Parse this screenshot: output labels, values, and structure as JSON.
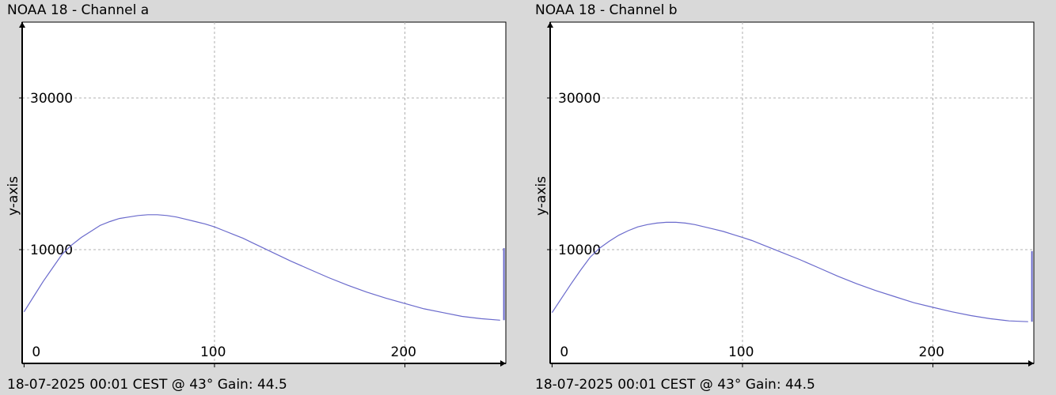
{
  "chart_data": [
    {
      "type": "line",
      "title": "NOAA 18 - Channel a",
      "footer": "18-07-2025 00:01 CEST @ 43° Gain: 44.5",
      "xlabel": "",
      "ylabel": "y-axis",
      "xlim": [
        -1,
        253
      ],
      "ylim": [
        -5000,
        40000
      ],
      "x_ticks": [
        0,
        100,
        200
      ],
      "y_ticks": [
        10000,
        30000
      ],
      "grid": true,
      "line_color": "#6a6acc",
      "series": [
        {
          "x": [
            0,
            5,
            10,
            15,
            20,
            25,
            30,
            35,
            40,
            45,
            50,
            55,
            60,
            65,
            70,
            75,
            80,
            85,
            90,
            95,
            100,
            105,
            110,
            115,
            120,
            130,
            140,
            150,
            160,
            170,
            180,
            190,
            200,
            210,
            220,
            230,
            240,
            250
          ],
          "y": [
            1800,
            3800,
            5800,
            7600,
            9400,
            10600,
            11600,
            12400,
            13200,
            13700,
            14100,
            14300,
            14500,
            14600,
            14600,
            14500,
            14300,
            14000,
            13700,
            13400,
            13000,
            12500,
            12000,
            11500,
            10900,
            9700,
            8500,
            7400,
            6300,
            5300,
            4400,
            3600,
            2900,
            2200,
            1700,
            1200,
            900,
            700
          ]
        }
      ],
      "end_spike": {
        "x": 252,
        "y": 10200
      }
    },
    {
      "type": "line",
      "title": "NOAA 18 - Channel b",
      "footer": "18-07-2025 00:01 CEST @ 43° Gain: 44.5",
      "xlabel": "",
      "ylabel": "y-axis",
      "xlim": [
        -1,
        253
      ],
      "ylim": [
        -5000,
        40000
      ],
      "x_ticks": [
        0,
        100,
        200
      ],
      "y_ticks": [
        10000,
        30000
      ],
      "grid": true,
      "line_color": "#6a6acc",
      "series": [
        {
          "x": [
            0,
            5,
            10,
            15,
            20,
            25,
            30,
            35,
            40,
            45,
            50,
            55,
            60,
            65,
            70,
            75,
            80,
            85,
            90,
            95,
            100,
            105,
            110,
            115,
            120,
            130,
            140,
            150,
            160,
            170,
            180,
            190,
            200,
            210,
            220,
            230,
            240,
            250
          ],
          "y": [
            1700,
            3600,
            5500,
            7300,
            9000,
            10200,
            11100,
            11900,
            12500,
            13000,
            13300,
            13500,
            13600,
            13600,
            13500,
            13300,
            13000,
            12700,
            12400,
            12000,
            11600,
            11200,
            10700,
            10200,
            9700,
            8700,
            7600,
            6500,
            5500,
            4600,
            3800,
            3000,
            2400,
            1800,
            1300,
            900,
            600,
            500
          ]
        }
      ],
      "end_spike": {
        "x": 252,
        "y": 9800
      }
    }
  ]
}
